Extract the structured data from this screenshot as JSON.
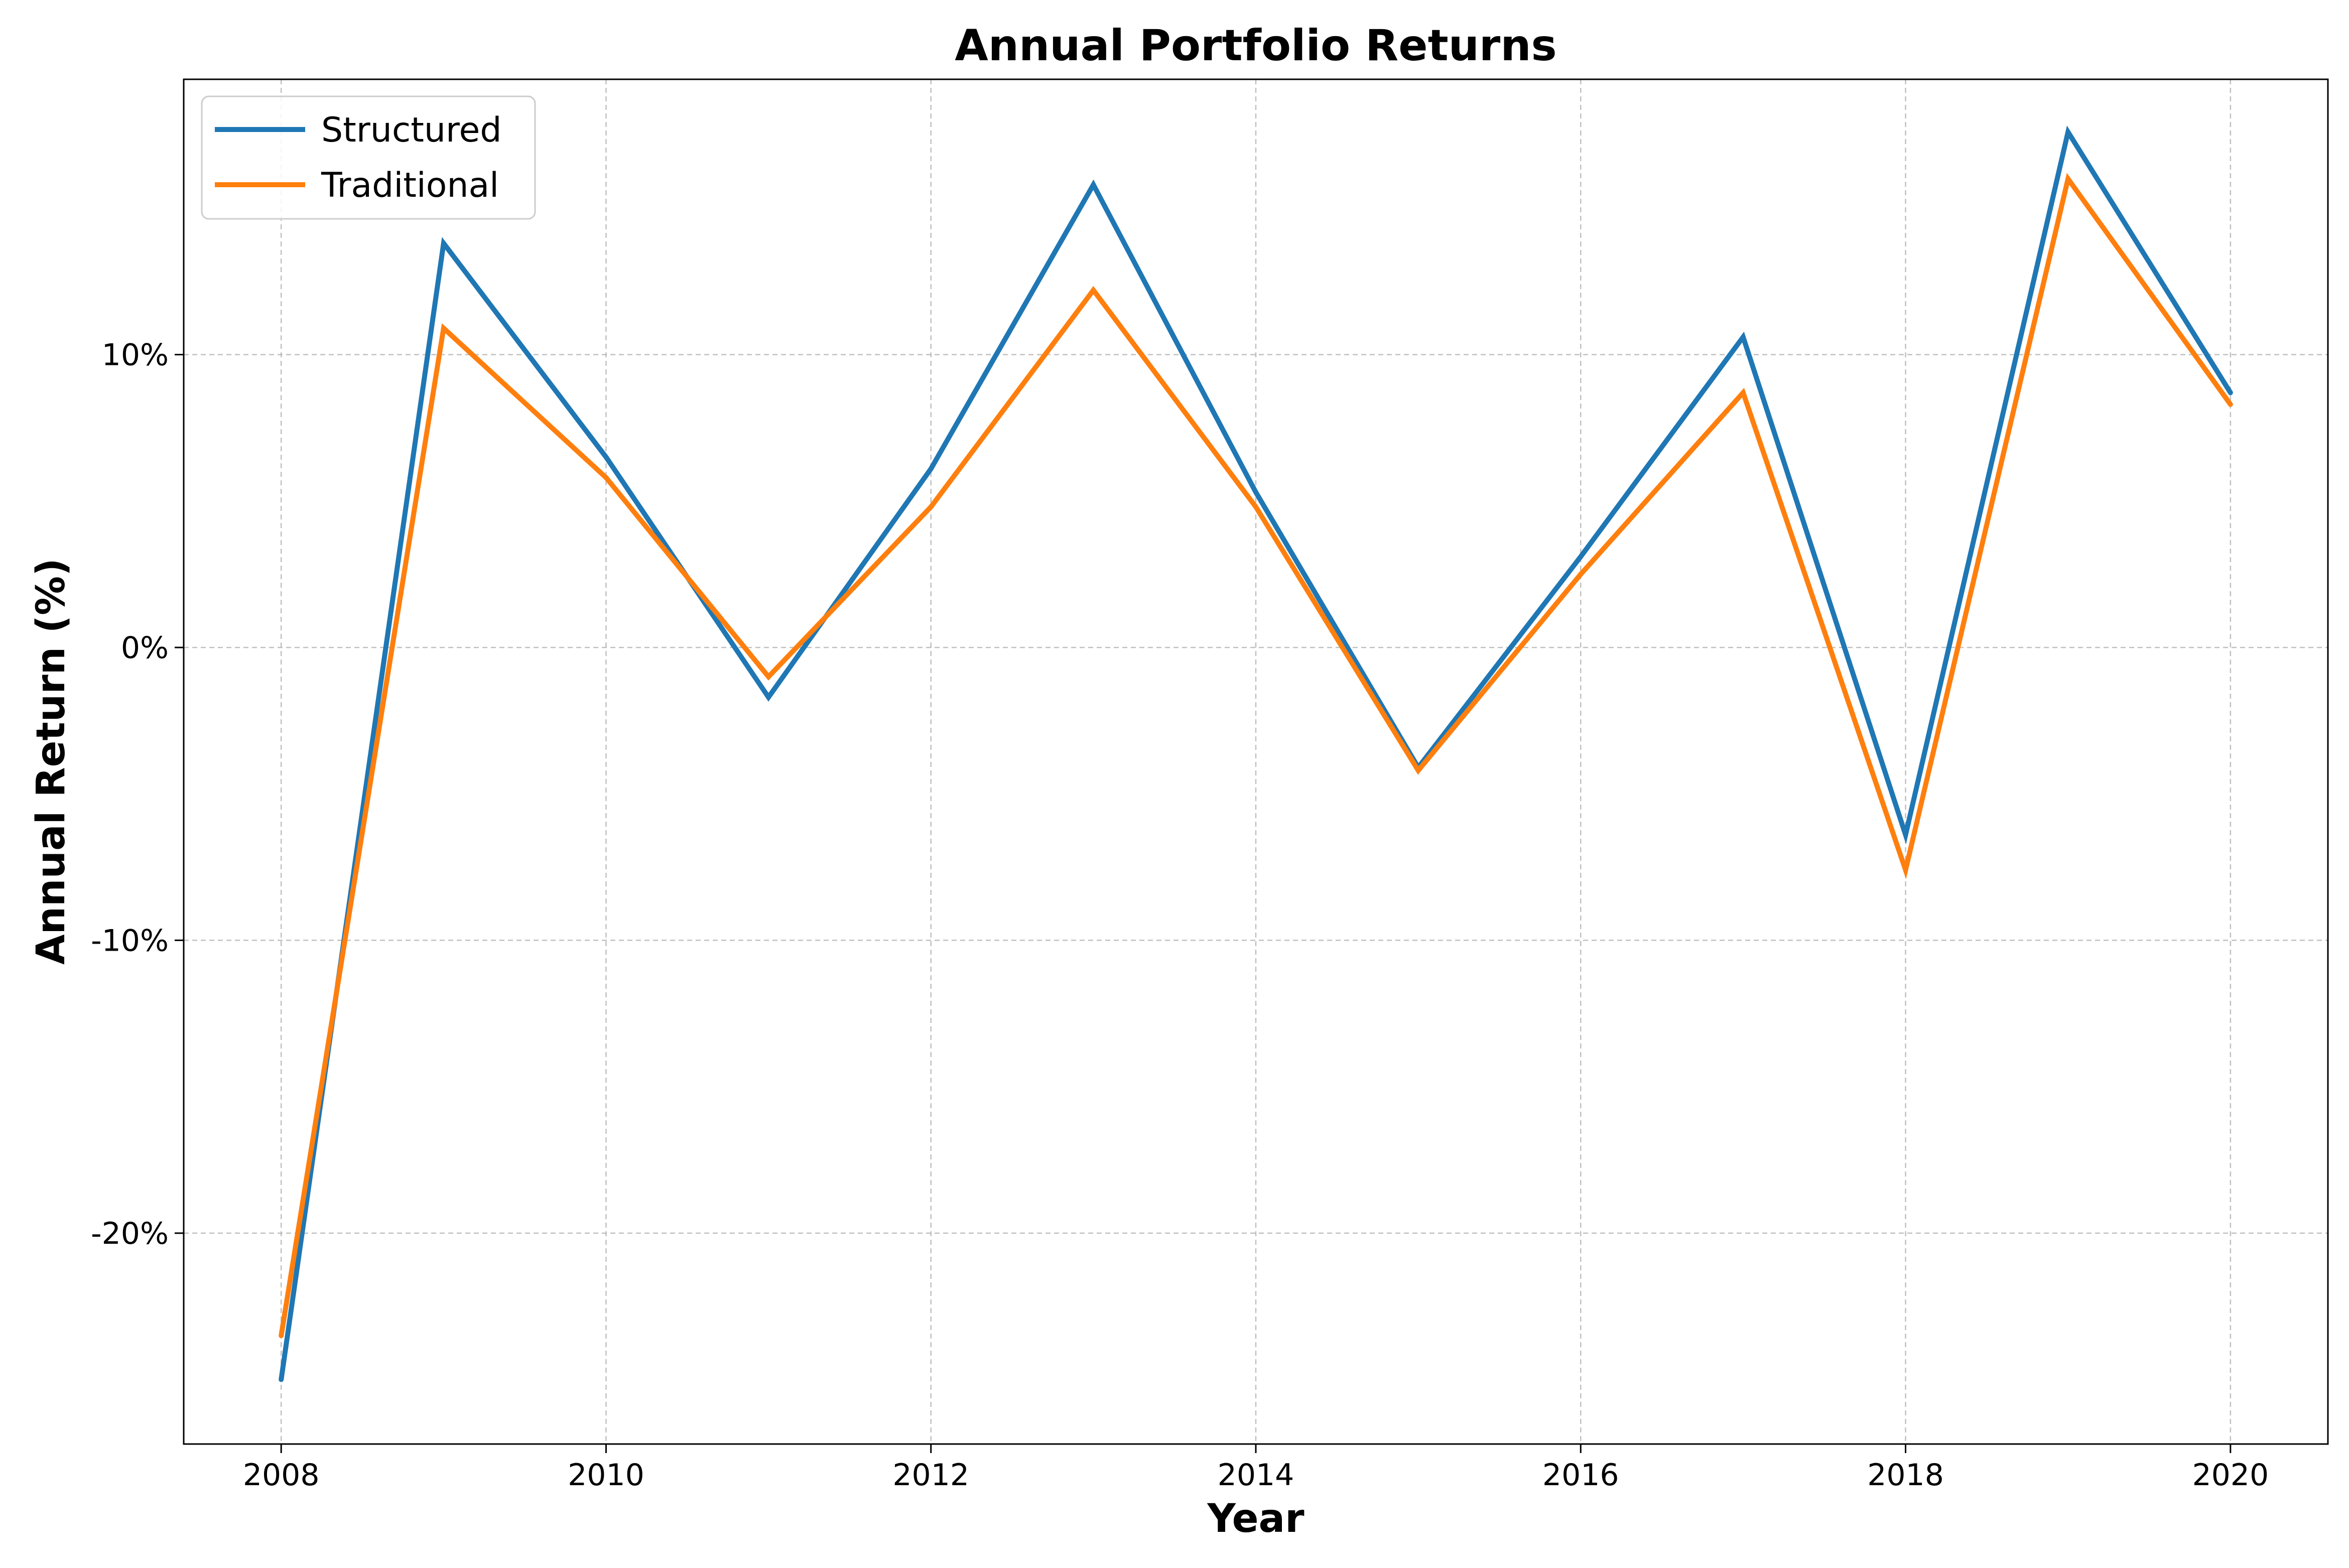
{
  "chart_data": {
    "type": "line",
    "title": "Annual Portfolio Returns",
    "xlabel": "Year",
    "ylabel": "Annual Return (%)",
    "x": [
      2008,
      2009,
      2010,
      2011,
      2012,
      2013,
      2014,
      2015,
      2016,
      2017,
      2018,
      2019,
      2020
    ],
    "xlim": [
      2007.4,
      2020.6
    ],
    "ylim": [
      -27.2,
      19.4
    ],
    "xticks": [
      2008,
      2010,
      2012,
      2014,
      2016,
      2018,
      2020
    ],
    "xtick_labels": [
      "2008",
      "2010",
      "2012",
      "2014",
      "2016",
      "2018",
      "2020"
    ],
    "yticks": [
      -20,
      -10,
      0,
      10
    ],
    "ytick_labels": [
      "-20%",
      "-10%",
      "0%",
      "10%"
    ],
    "grid": true,
    "legend_position": "top-left",
    "series": [
      {
        "name": "Structured",
        "color": "#1f77b4",
        "values": [
          -25.0,
          13.8,
          6.5,
          -1.7,
          6.1,
          15.8,
          5.3,
          -4.1,
          3.1,
          10.6,
          -6.4,
          17.6,
          8.7
        ]
      },
      {
        "name": "Traditional",
        "color": "#ff7f0e",
        "values": [
          -23.5,
          10.9,
          5.8,
          -1.0,
          4.8,
          12.2,
          4.8,
          -4.2,
          2.5,
          8.7,
          -7.6,
          16.0,
          8.3
        ]
      }
    ]
  }
}
